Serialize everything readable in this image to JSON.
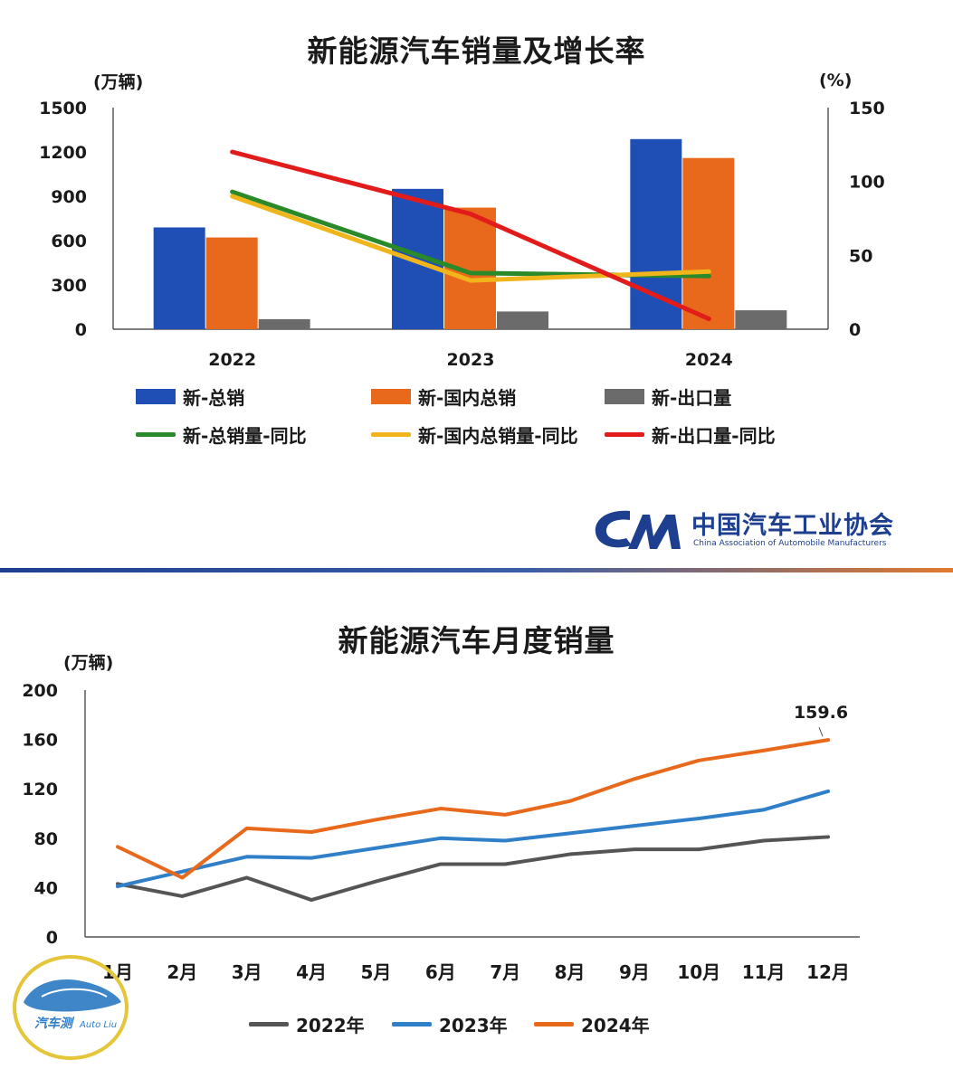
{
  "org": {
    "name_cn": "中国汽车工业协会",
    "name_en": "China Association of Automobile Manufacturers",
    "brand": "#1e3f8f"
  },
  "badge": {
    "text": "汽车测",
    "sub": "Auto Liu"
  },
  "colors": {
    "blue_bar": "#1f4fb5",
    "orange_bar": "#e8691b",
    "gray_bar": "#6b6b6b",
    "green_line": "#2a8a2a",
    "yellow_line": "#f0b51a",
    "red_line": "#e21b1b",
    "l2022": "#555555",
    "l2023": "#2f7fc9",
    "l2024": "#e8691b"
  },
  "chart_data": [
    {
      "type": "bar",
      "title": "新能源汽车销量及增长率",
      "ylabel": "(万辆)",
      "y2label": "(%)",
      "categories": [
        "2022",
        "2023",
        "2024"
      ],
      "ylim": [
        0,
        1500
      ],
      "yticks": [
        "0",
        "300",
        "600",
        "900",
        "1200",
        "1500"
      ],
      "y2lim": [
        0,
        150
      ],
      "y2ticks": [
        "0",
        "50",
        "100",
        "150"
      ],
      "series": [
        {
          "name": "新-总销",
          "kind": "bar",
          "axis": "left",
          "color": "#1f4fb5",
          "values": [
            689,
            950,
            1287
          ]
        },
        {
          "name": "新-国内总销",
          "kind": "bar",
          "axis": "left",
          "color": "#e8691b",
          "values": [
            621,
            823,
            1159
          ]
        },
        {
          "name": "新-出口量",
          "kind": "bar",
          "axis": "left",
          "color": "#6b6b6b",
          "values": [
            68,
            120,
            128
          ]
        },
        {
          "name": "新-总销量-同比",
          "kind": "line",
          "axis": "right",
          "color": "#2a8a2a",
          "values": [
            93,
            38,
            36
          ]
        },
        {
          "name": "新-国内总销量-同比",
          "kind": "line",
          "axis": "right",
          "color": "#f0b51a",
          "values": [
            90,
            33,
            39
          ]
        },
        {
          "name": "新-出口量-同比",
          "kind": "line",
          "axis": "right",
          "color": "#e21b1b",
          "values": [
            120,
            78,
            7
          ]
        }
      ],
      "legend": "bottom",
      "grid": false
    },
    {
      "type": "line",
      "title": "新能源汽车月度销量",
      "ylabel": "(万辆)",
      "categories": [
        "1月",
        "2月",
        "3月",
        "4月",
        "5月",
        "6月",
        "7月",
        "8月",
        "9月",
        "10月",
        "11月",
        "12月"
      ],
      "ylim": [
        0,
        200
      ],
      "yticks": [
        "0",
        "40",
        "80",
        "120",
        "160",
        "200"
      ],
      "series": [
        {
          "name": "2022年",
          "color": "#555555",
          "values": [
            43,
            33,
            48,
            30,
            45,
            59,
            59,
            67,
            71,
            71,
            78,
            81
          ]
        },
        {
          "name": "2023年",
          "color": "#2f7fc9",
          "values": [
            41,
            53,
            65,
            64,
            72,
            80,
            78,
            84,
            90,
            96,
            103,
            118
          ]
        },
        {
          "name": "2024年",
          "color": "#e8691b",
          "values": [
            73,
            48,
            88,
            85,
            95,
            104,
            99,
            110,
            128,
            143,
            151,
            159.6
          ]
        }
      ],
      "annotation": {
        "text": "159.6",
        "series": "2024年",
        "index": 11
      },
      "legend": "bottom",
      "grid": false
    }
  ]
}
